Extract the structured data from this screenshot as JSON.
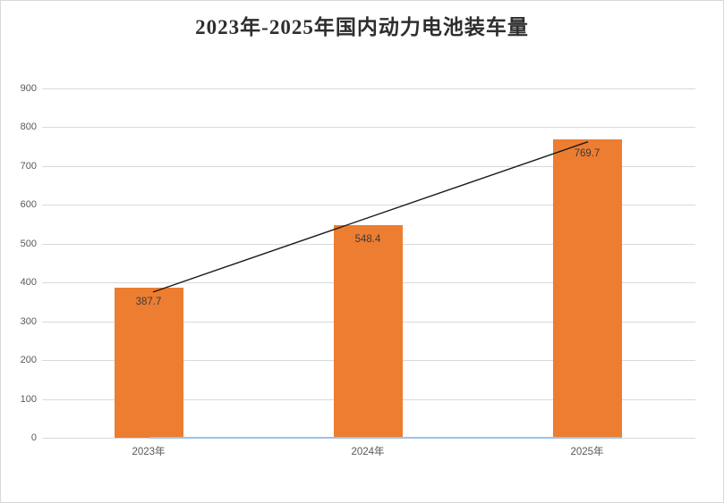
{
  "chart_data": {
    "type": "bar",
    "title": "2023年-2025年国内动力电池装车量",
    "categories": [
      "2023年",
      "2024年",
      "2025年"
    ],
    "values": [
      387.7,
      548.4,
      769.7
    ],
    "data_labels": [
      "387.7",
      "548.4",
      "769.7"
    ],
    "xlabel": "",
    "ylabel": "",
    "ylim": [
      0,
      900
    ],
    "y_ticks": [
      0,
      100,
      200,
      300,
      400,
      500,
      600,
      700,
      800,
      900
    ],
    "grid": true,
    "legend": false,
    "annotations": [
      "straight trend line from 2023 bar top to 2025 bar top",
      "light blue horizontal series line along zero baseline"
    ],
    "colors": {
      "bar": "#ed7d31",
      "trend_line": "#1a1a1a",
      "baseline_line": "#9dc3e6",
      "gridline": "#d9d9d9",
      "axis_text": "#595959",
      "data_label_text": "#3b3b3b",
      "title_text": "#2e2e2e",
      "frame_border": "#d9d9d9",
      "background": "#ffffff"
    }
  }
}
